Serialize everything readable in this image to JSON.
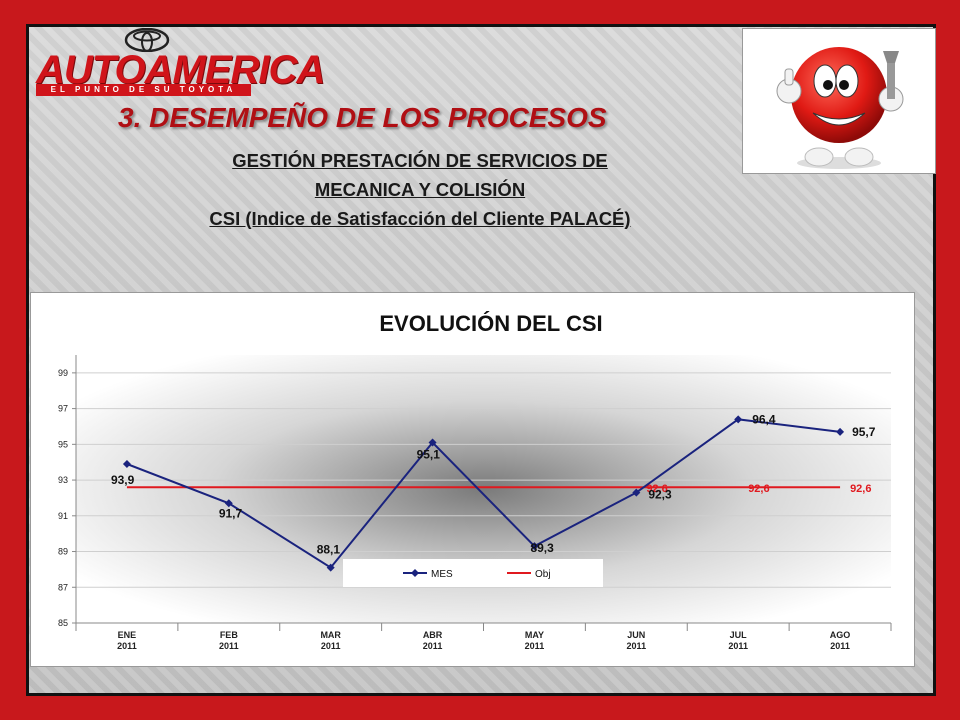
{
  "header": {
    "brand": "AUTOAMERICA",
    "tagline": "EL PUNTO DE SU TOYOTA",
    "section_title": "3. DESEMPEÑO DE LOS PROCESOS",
    "subtitle_line1": "GESTIÓN PRESTACIÓN DE SERVICIOS DE",
    "subtitle_line2": "MECANICA Y COLISIÓN",
    "subtitle_line3": "CSI (Indice de Satisfacción del Cliente PALACÉ)"
  },
  "colors": {
    "frame": "#c8181c",
    "mes": "#1a237e",
    "obj": "#e0191f",
    "title_red": "#b00f14"
  },
  "chart_data": {
    "type": "line",
    "title": "EVOLUCIÓN DEL CSI",
    "categories": [
      "ENE 2011",
      "FEB 2011",
      "MAR 2011",
      "ABR 2011",
      "MAY 2011",
      "JUN 2011",
      "JUL 2011",
      "AGO 2011"
    ],
    "category_lines": [
      [
        "ENE",
        "2011"
      ],
      [
        "FEB",
        "2011"
      ],
      [
        "MAR",
        "2011"
      ],
      [
        "ABR",
        "2011"
      ],
      [
        "MAY",
        "2011"
      ],
      [
        "JUN",
        "2011"
      ],
      [
        "JUL",
        "2011"
      ],
      [
        "AGO",
        "2011"
      ]
    ],
    "series": [
      {
        "name": "MES",
        "values": [
          93.9,
          91.7,
          88.1,
          95.1,
          89.3,
          92.3,
          96.4,
          95.7
        ],
        "labels": [
          "93,9",
          "91,7",
          "88,1",
          "95,1",
          "89,3",
          "92,3",
          "96,4",
          "95,7"
        ],
        "color": "#1a237e",
        "marker": "diamond"
      },
      {
        "name": "Obj",
        "values": [
          92.6,
          92.6,
          92.6,
          92.6,
          92.6,
          92.6,
          92.6,
          92.6
        ],
        "labels": [
          "92,6",
          "92,6",
          "92,6"
        ],
        "labeled_indices": [
          5,
          6,
          7
        ],
        "color": "#e0191f"
      }
    ],
    "yticks": [
      "85",
      "87",
      "89",
      "91",
      "93",
      "95",
      "97",
      "99"
    ],
    "ylim": [
      85,
      100
    ],
    "grid": true,
    "legend_position": "bottom-center"
  }
}
